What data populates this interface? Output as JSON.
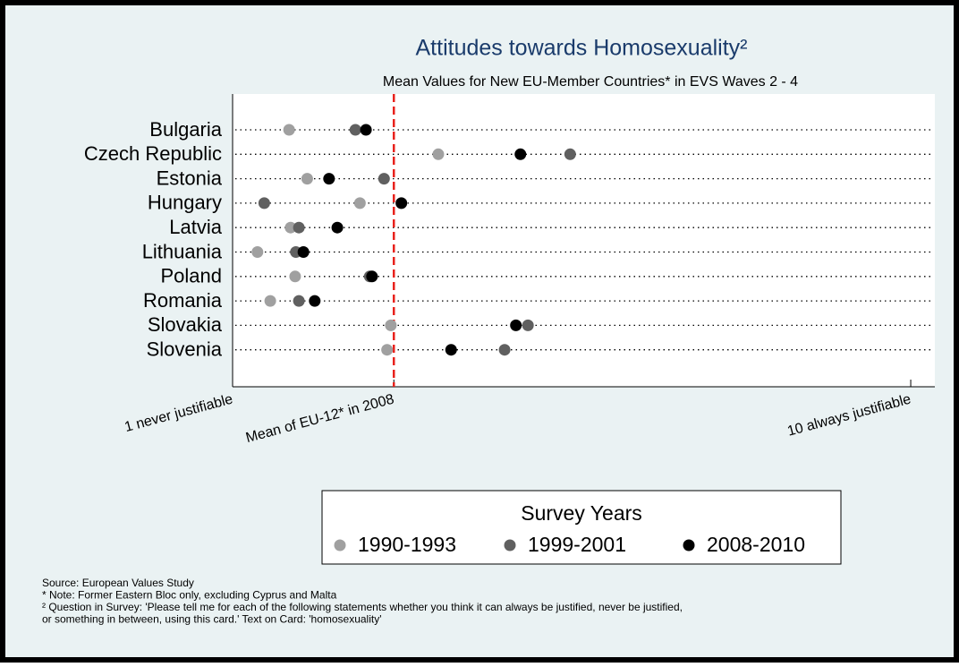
{
  "chart_data": {
    "type": "dot",
    "title": "Attitudes towards Homosexuality²",
    "subtitle": "Mean Values for New EU-Member Countries* in EVS Waves 2 - 4",
    "categories": [
      "Bulgaria",
      "Czech Republic",
      "Estonia",
      "Hungary",
      "Latvia",
      "Lithuania",
      "Poland",
      "Romania",
      "Slovakia",
      "Slovenia"
    ],
    "series": [
      {
        "name": "1990-1993",
        "color": "#a0a0a0",
        "values": [
          1.75,
          3.73,
          1.99,
          2.69,
          1.77,
          1.33,
          1.83,
          1.5,
          3.1,
          3.05
        ]
      },
      {
        "name": "1999-2001",
        "color": "#606060",
        "values": [
          2.63,
          5.48,
          3.01,
          1.42,
          1.88,
          1.84,
          2.82,
          1.88,
          4.92,
          4.61
        ]
      },
      {
        "name": "2008-2010",
        "color": "#000000",
        "values": [
          2.77,
          4.82,
          2.28,
          3.24,
          2.39,
          1.94,
          2.85,
          2.09,
          4.76,
          3.9
        ]
      }
    ],
    "xlim": [
      1,
      10.32
    ],
    "xticks": [
      {
        "value": 1,
        "label": "1 never justifiable"
      },
      {
        "value": 3.14,
        "label": "Mean of EU-12* in 2008"
      },
      {
        "value": 10,
        "label": "10 always justifiable"
      }
    ],
    "reference_line": {
      "value": 3.14,
      "color": "#e8221c"
    },
    "legend_title": "Survey Years",
    "legend": "bottom",
    "notes": [
      "Source: European Values Study",
      "* Note: Former Eastern Bloc only, excluding Cyprus and Malta",
      "² Question in Survey: 'Please tell me for each of the following statements whether you think it can always be justified, never be justified,",
      "or something in between, using this card.' Text on Card: 'homosexuality'"
    ]
  }
}
